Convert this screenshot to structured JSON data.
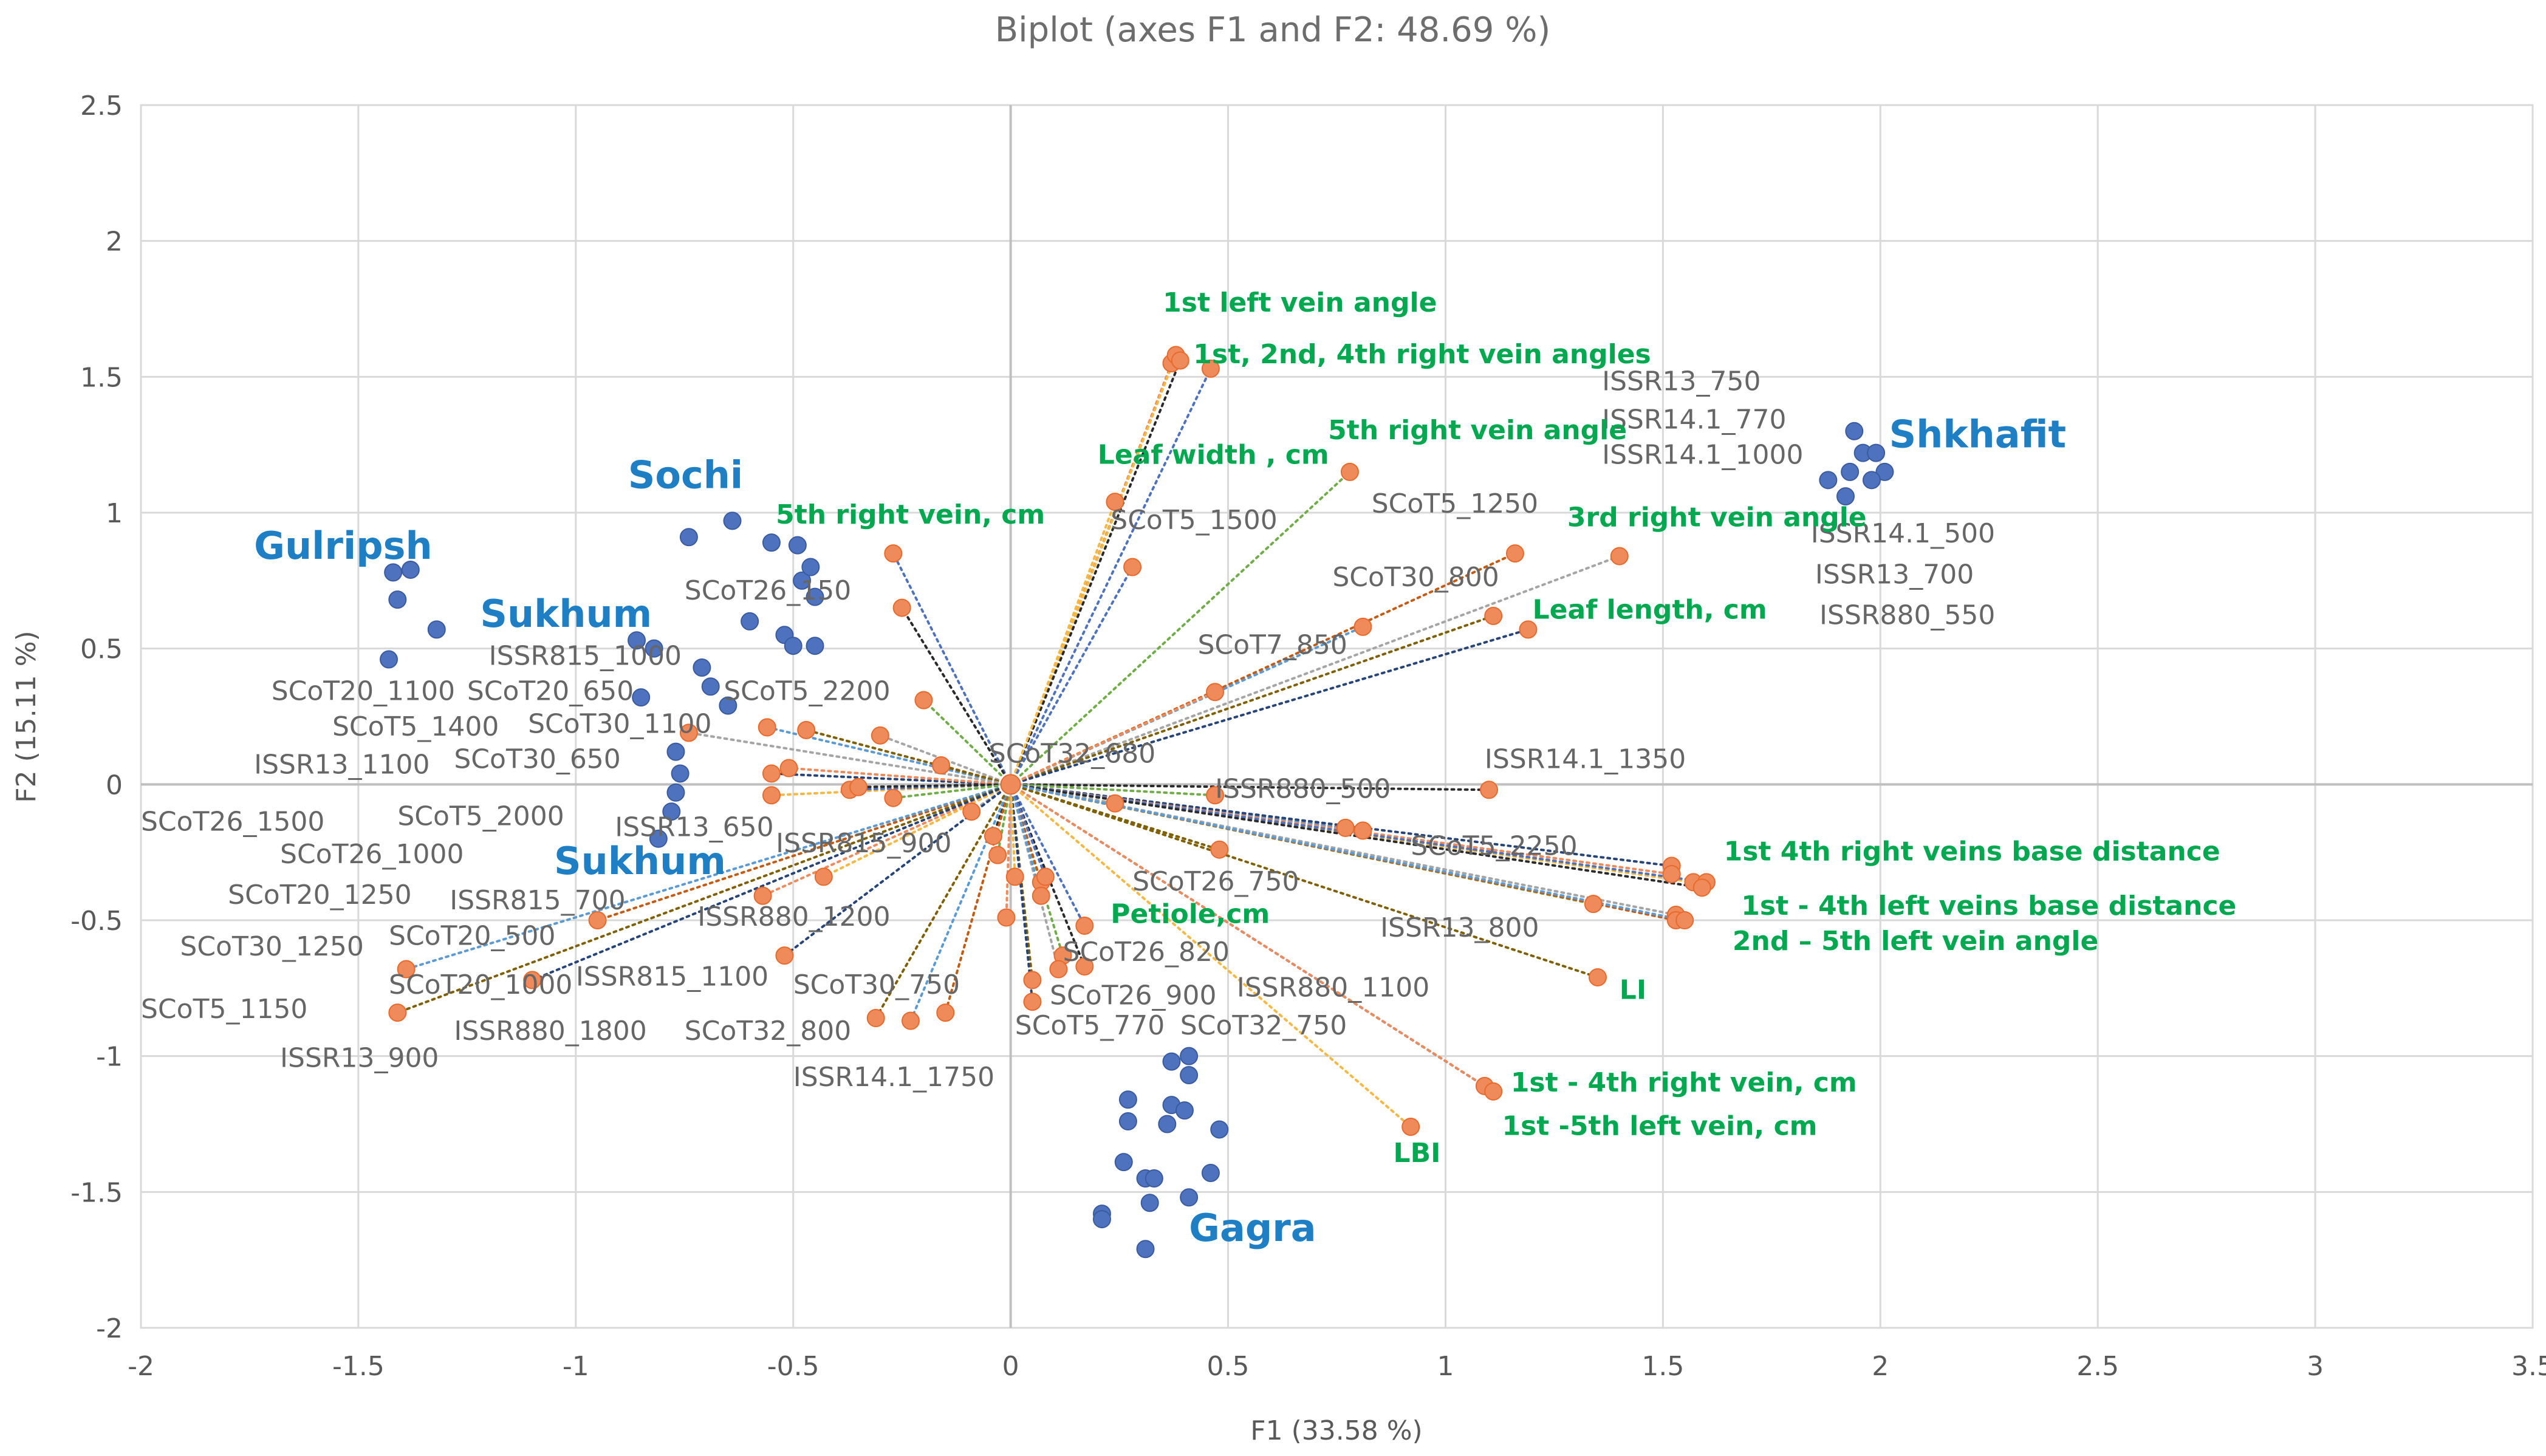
{
  "chart_data": {
    "type": "scatter",
    "title": "Biplot (axes F1 and F2: 48.69 %)",
    "xlabel": "F1 (33.58 %)",
    "ylabel": "F2 (15.11 %)",
    "xlim": [
      -2,
      3.5
    ],
    "ylim": [
      -2,
      2.5
    ],
    "xticks": [
      -2,
      -1.5,
      -1,
      -0.5,
      0,
      0.5,
      1,
      1.5,
      2,
      2.5,
      3,
      3.5
    ],
    "yticks": [
      -2,
      -1.5,
      -1,
      -0.5,
      0,
      0.5,
      1,
      1.5,
      2,
      2.5
    ],
    "xtick_labels": [
      "-2",
      "-1.5",
      "-1",
      "-0.5",
      "0",
      "0.5",
      "1",
      "1.5",
      "2",
      "2.5",
      "3",
      "3.5"
    ],
    "ytick_labels": [
      "-2",
      "-1.5",
      "-1",
      "-0.5",
      "0",
      "0.5",
      "1",
      "1.5",
      "2",
      "2.5"
    ],
    "colors": {
      "observations": "#4f72be",
      "variables": "#ef8a5a",
      "green_text": "#00a850",
      "blue_text": "#1f7fc4",
      "grid": "#d9d9d9"
    },
    "observations": [
      [
        -1.42,
        0.78
      ],
      [
        -1.38,
        0.79
      ],
      [
        -1.41,
        0.68
      ],
      [
        -1.32,
        0.57
      ],
      [
        -1.43,
        0.46
      ],
      [
        -0.74,
        0.91
      ],
      [
        -0.64,
        0.97
      ],
      [
        -0.55,
        0.89
      ],
      [
        -0.49,
        0.88
      ],
      [
        -0.48,
        0.75
      ],
      [
        -0.46,
        0.8
      ],
      [
        -0.45,
        0.69
      ],
      [
        -0.6,
        0.6
      ],
      [
        -0.52,
        0.55
      ],
      [
        -0.5,
        0.51
      ],
      [
        -0.45,
        0.51
      ],
      [
        -0.86,
        0.53
      ],
      [
        -0.82,
        0.5
      ],
      [
        -0.71,
        0.43
      ],
      [
        -0.69,
        0.36
      ],
      [
        -0.65,
        0.29
      ],
      [
        -0.85,
        0.32
      ],
      [
        -0.77,
        0.12
      ],
      [
        -0.76,
        0.04
      ],
      [
        -0.77,
        -0.03
      ],
      [
        -0.78,
        -0.1
      ],
      [
        -0.81,
        -0.2
      ],
      [
        1.94,
        1.3
      ],
      [
        1.96,
        1.22
      ],
      [
        1.99,
        1.22
      ],
      [
        2.01,
        1.15
      ],
      [
        1.88,
        1.12
      ],
      [
        1.93,
        1.15
      ],
      [
        1.98,
        1.12
      ],
      [
        1.92,
        1.06
      ],
      [
        0.37,
        -1.02
      ],
      [
        0.41,
        -1.0
      ],
      [
        0.41,
        -1.07
      ],
      [
        0.27,
        -1.16
      ],
      [
        0.37,
        -1.18
      ],
      [
        0.4,
        -1.2
      ],
      [
        0.27,
        -1.24
      ],
      [
        0.36,
        -1.25
      ],
      [
        0.48,
        -1.27
      ],
      [
        0.26,
        -1.39
      ],
      [
        0.31,
        -1.45
      ],
      [
        0.33,
        -1.45
      ],
      [
        0.46,
        -1.43
      ],
      [
        0.21,
        -1.58
      ],
      [
        0.21,
        -1.6
      ],
      [
        0.32,
        -1.54
      ],
      [
        0.41,
        -1.52
      ],
      [
        0.31,
        -1.71
      ]
    ],
    "variables": [
      [
        0.37,
        1.55
      ],
      [
        0.38,
        1.58
      ],
      [
        0.46,
        1.53
      ],
      [
        0.39,
        1.56
      ],
      [
        0.78,
        1.15
      ],
      [
        1.4,
        0.84
      ],
      [
        1.16,
        0.85
      ],
      [
        0.81,
        0.58
      ],
      [
        1.11,
        0.62
      ],
      [
        1.19,
        0.57
      ],
      [
        0.47,
        0.34
      ],
      [
        0.24,
        1.04
      ],
      [
        0.28,
        0.8
      ],
      [
        1.1,
        -0.02
      ],
      [
        0.47,
        -0.04
      ],
      [
        0.24,
        -0.07
      ],
      [
        0.77,
        -0.16
      ],
      [
        0.81,
        -0.17
      ],
      [
        0.48,
        -0.24
      ],
      [
        1.52,
        -0.3
      ],
      [
        1.52,
        -0.33
      ],
      [
        1.57,
        -0.36
      ],
      [
        1.6,
        -0.36
      ],
      [
        1.59,
        -0.38
      ],
      [
        1.34,
        -0.44
      ],
      [
        1.53,
        -0.48
      ],
      [
        1.53,
        -0.5
      ],
      [
        1.55,
        -0.5
      ],
      [
        1.35,
        -0.71
      ],
      [
        1.09,
        -1.11
      ],
      [
        1.11,
        -1.13
      ],
      [
        0.92,
        -1.26
      ],
      [
        0.17,
        -0.52
      ],
      [
        0.17,
        -0.67
      ],
      [
        0.12,
        -0.63
      ],
      [
        0.11,
        -0.68
      ],
      [
        0.07,
        -0.36
      ],
      [
        0.07,
        -0.41
      ],
      [
        0.05,
        -0.72
      ],
      [
        0.05,
        -0.8
      ],
      [
        -0.01,
        -0.49
      ],
      [
        0.01,
        -0.34
      ],
      [
        0.08,
        -0.34
      ],
      [
        -0.04,
        -0.19
      ],
      [
        -0.03,
        -0.26
      ],
      [
        -0.09,
        -0.1
      ],
      [
        -0.15,
        -0.84
      ],
      [
        -0.23,
        -0.87
      ],
      [
        -0.31,
        -0.86
      ],
      [
        -0.52,
        -0.63
      ],
      [
        -0.57,
        -0.41
      ],
      [
        -0.43,
        -0.34
      ],
      [
        -0.27,
        0.85
      ],
      [
        -0.25,
        0.65
      ],
      [
        -0.2,
        0.31
      ],
      [
        -0.3,
        0.18
      ],
      [
        -0.16,
        0.07
      ],
      [
        -0.56,
        0.21
      ],
      [
        -0.47,
        0.2
      ],
      [
        -0.55,
        0.04
      ],
      [
        -0.51,
        0.06
      ],
      [
        -0.55,
        -0.04
      ],
      [
        -0.37,
        -0.02
      ],
      [
        -0.35,
        -0.01
      ],
      [
        -0.27,
        -0.05
      ],
      [
        -0.74,
        0.19
      ],
      [
        -0.95,
        -0.5
      ],
      [
        -1.39,
        -0.68
      ],
      [
        -1.41,
        -0.84
      ],
      [
        -1.1,
        -0.72
      ]
    ],
    "var_labels": [
      {
        "text": "ISSR13_750",
        "x": 1.36,
        "y": 1.45
      },
      {
        "text": "ISSR14.1_770",
        "x": 1.36,
        "y": 1.31
      },
      {
        "text": "ISSR14.1_1000",
        "x": 1.36,
        "y": 1.18
      },
      {
        "text": "SCoT5_1250",
        "x": 0.83,
        "y": 1.0
      },
      {
        "text": "SCoT5_1500",
        "x": 0.23,
        "y": 0.94
      },
      {
        "text": "ISSR14.1_500",
        "x": 1.84,
        "y": 0.89
      },
      {
        "text": "SCoT30_800",
        "x": 0.74,
        "y": 0.73
      },
      {
        "text": "ISSR13_700",
        "x": 1.85,
        "y": 0.74
      },
      {
        "text": "SCoT26_150",
        "x": -0.75,
        "y": 0.68
      },
      {
        "text": "ISSR880_550",
        "x": 1.86,
        "y": 0.59
      },
      {
        "text": "SCoT7_850",
        "x": 0.43,
        "y": 0.48
      },
      {
        "text": "ISSR815_1000",
        "x": -1.2,
        "y": 0.44
      },
      {
        "text": "SCoT20_1100",
        "x": -1.7,
        "y": 0.31
      },
      {
        "text": "SCoT20_650",
        "x": -1.25,
        "y": 0.31
      },
      {
        "text": "SCoT5_2200",
        "x": -0.66,
        "y": 0.31
      },
      {
        "text": "SCoT5_1400",
        "x": -1.56,
        "y": 0.18
      },
      {
        "text": "SCoT30_1100",
        "x": -1.11,
        "y": 0.19
      },
      {
        "text": "SCoT32_680",
        "x": -0.05,
        "y": 0.08
      },
      {
        "text": "ISSR14.1_1350",
        "x": 1.09,
        "y": 0.06
      },
      {
        "text": "SCoT30_650",
        "x": -1.28,
        "y": 0.06
      },
      {
        "text": "ISSR13_1100",
        "x": -1.74,
        "y": 0.04
      },
      {
        "text": "ISSR880_500",
        "x": 0.47,
        "y": -0.05
      },
      {
        "text": "SCoT26_1500",
        "x": -2.0,
        "y": -0.17
      },
      {
        "text": "SCoT5_2000",
        "x": -1.41,
        "y": -0.15
      },
      {
        "text": "ISSR13_650",
        "x": -0.91,
        "y": -0.19
      },
      {
        "text": "ISSR815_900",
        "x": -0.54,
        "y": -0.25
      },
      {
        "text": "SCoT5_2250",
        "x": 0.92,
        "y": -0.26
      },
      {
        "text": "SCoT26_1000",
        "x": -1.68,
        "y": -0.29
      },
      {
        "text": "SCoT26_750",
        "x": 0.28,
        "y": -0.39
      },
      {
        "text": "SCoT20_1250",
        "x": -1.8,
        "y": -0.44
      },
      {
        "text": "ISSR815_700",
        "x": -1.29,
        "y": -0.46
      },
      {
        "text": "ISSR880_1200",
        "x": -0.72,
        "y": -0.52
      },
      {
        "text": "SCoT20_500",
        "x": -1.43,
        "y": -0.59
      },
      {
        "text": "SCoT30_1250",
        "x": -1.91,
        "y": -0.63
      },
      {
        "text": "SCoT26_820",
        "x": 0.12,
        "y": -0.65
      },
      {
        "text": "ISSR13_800",
        "x": 0.85,
        "y": -0.56
      },
      {
        "text": "ISSR815_1100",
        "x": -1.0,
        "y": -0.74
      },
      {
        "text": "SCoT30_750",
        "x": -0.5,
        "y": -0.77
      },
      {
        "text": "ISSR880_1100",
        "x": 0.52,
        "y": -0.78
      },
      {
        "text": "SCoT20_1000",
        "x": -1.43,
        "y": -0.77
      },
      {
        "text": "SCoT26_900",
        "x": 0.09,
        "y": -0.81
      },
      {
        "text": "SCoT5_1150",
        "x": -2.0,
        "y": -0.86
      },
      {
        "text": "SCoT5_770",
        "x": 0.01,
        "y": -0.92
      },
      {
        "text": "SCoT32_750",
        "x": 0.39,
        "y": -0.92
      },
      {
        "text": "ISSR880_1800",
        "x": -1.28,
        "y": -0.94
      },
      {
        "text": "SCoT32_800",
        "x": -0.75,
        "y": -0.94
      },
      {
        "text": "ISSR13_900",
        "x": -1.68,
        "y": -1.04
      },
      {
        "text": "ISSR14.1_1750",
        "x": -0.5,
        "y": -1.11
      }
    ],
    "vec_labels": [
      {
        "text": "1st left vein angle",
        "x": 0.35,
        "y": 1.74,
        "sup": null
      },
      {
        "text": "1st, 2nd, 4th  right vein angles",
        "x": 0.42,
        "y": 1.55,
        "sup": "st,nd,th"
      },
      {
        "text": "5th right vein angle",
        "x": 0.73,
        "y": 1.27
      },
      {
        "text": "Leaf width , cm",
        "x": 0.2,
        "y": 1.18
      },
      {
        "text": "5th right vein, cm",
        "x": -0.54,
        "y": 0.96
      },
      {
        "text": "3rd right vein angle",
        "x": 1.28,
        "y": 0.95
      },
      {
        "text": "Leaf length, cm",
        "x": 1.2,
        "y": 0.61
      },
      {
        "text": "1st 4th right veins base distance",
        "x": 1.64,
        "y": -0.28
      },
      {
        "text": "1st - 4th  left veins base distance",
        "x": 1.68,
        "y": -0.48
      },
      {
        "text": "2nd – 5th left vein angle",
        "x": 1.66,
        "y": -0.61
      },
      {
        "text": "Petiole,cm",
        "x": 0.23,
        "y": -0.51
      },
      {
        "text": "LI",
        "x": 1.4,
        "y": -0.79
      },
      {
        "text": "1st  - 4th  right vein, cm",
        "x": 1.15,
        "y": -1.13
      },
      {
        "text": "1st -5th  left vein, cm",
        "x": 1.13,
        "y": -1.29
      },
      {
        "text": "LBI",
        "x": 0.88,
        "y": -1.39
      }
    ],
    "group_labels": [
      {
        "text": "Gulripsh",
        "x": -1.74,
        "y": 0.83
      },
      {
        "text": "Sochi",
        "x": -0.88,
        "y": 1.09
      },
      {
        "text": "Sukhum",
        "x": -1.22,
        "y": 0.58
      },
      {
        "text": "Sukhum",
        "x": -1.05,
        "y": -0.33
      },
      {
        "text": "Shkhafit",
        "x": 2.02,
        "y": 1.24
      },
      {
        "text": "Gagra",
        "x": 0.41,
        "y": -1.68
      }
    ]
  }
}
